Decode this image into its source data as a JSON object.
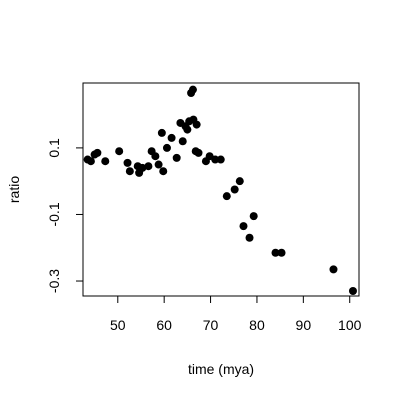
{
  "chart_data": {
    "type": "scatter",
    "title": "",
    "xlabel": "time (mya)",
    "ylabel": "ratio",
    "xlim": [
      42.5,
      102
    ],
    "ylim": [
      -0.345,
      0.295
    ],
    "xticks": [
      50,
      60,
      70,
      80,
      90,
      100
    ],
    "yticks": [
      -0.3,
      -0.1,
      0.1
    ],
    "grid": false,
    "legend": "none",
    "point_color": "#000000",
    "points": [
      {
        "x": 43.5,
        "y": 0.065
      },
      {
        "x": 44.2,
        "y": 0.06
      },
      {
        "x": 45.0,
        "y": 0.08
      },
      {
        "x": 45.6,
        "y": 0.085
      },
      {
        "x": 47.3,
        "y": 0.06
      },
      {
        "x": 50.3,
        "y": 0.09
      },
      {
        "x": 52.1,
        "y": 0.055
      },
      {
        "x": 52.6,
        "y": 0.03
      },
      {
        "x": 54.3,
        "y": 0.045
      },
      {
        "x": 54.6,
        "y": 0.025
      },
      {
        "x": 55.3,
        "y": 0.04
      },
      {
        "x": 56.6,
        "y": 0.045
      },
      {
        "x": 57.3,
        "y": 0.09
      },
      {
        "x": 58.1,
        "y": 0.075
      },
      {
        "x": 58.8,
        "y": 0.05
      },
      {
        "x": 59.5,
        "y": 0.145
      },
      {
        "x": 59.8,
        "y": 0.03
      },
      {
        "x": 60.6,
        "y": 0.1
      },
      {
        "x": 61.6,
        "y": 0.13
      },
      {
        "x": 62.7,
        "y": 0.07
      },
      {
        "x": 63.5,
        "y": 0.175
      },
      {
        "x": 64.0,
        "y": 0.12
      },
      {
        "x": 64.6,
        "y": 0.165
      },
      {
        "x": 65.0,
        "y": 0.155
      },
      {
        "x": 65.4,
        "y": 0.18
      },
      {
        "x": 65.8,
        "y": 0.265
      },
      {
        "x": 66.2,
        "y": 0.275
      },
      {
        "x": 66.3,
        "y": 0.185
      },
      {
        "x": 66.8,
        "y": 0.09
      },
      {
        "x": 67.0,
        "y": 0.17
      },
      {
        "x": 67.4,
        "y": 0.085
      },
      {
        "x": 69.0,
        "y": 0.06
      },
      {
        "x": 69.8,
        "y": 0.075
      },
      {
        "x": 71.0,
        "y": 0.065
      },
      {
        "x": 72.2,
        "y": 0.065
      },
      {
        "x": 73.5,
        "y": -0.045
      },
      {
        "x": 75.2,
        "y": -0.025
      },
      {
        "x": 76.3,
        "y": -0.0
      },
      {
        "x": 77.1,
        "y": -0.135
      },
      {
        "x": 78.4,
        "y": -0.17
      },
      {
        "x": 79.3,
        "y": -0.105
      },
      {
        "x": 84.0,
        "y": -0.215
      },
      {
        "x": 85.3,
        "y": -0.215
      },
      {
        "x": 96.5,
        "y": -0.265
      },
      {
        "x": 100.7,
        "y": -0.33
      }
    ]
  }
}
